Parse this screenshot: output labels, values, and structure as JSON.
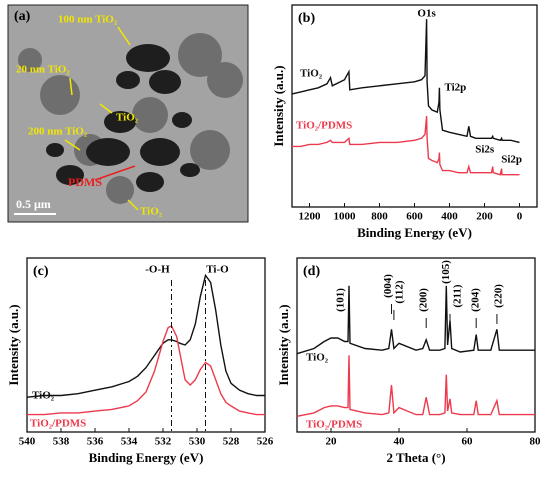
{
  "image_panel": {
    "panel_label": "(a)",
    "labels": [
      "100 nm TiO₂",
      "20 nm TiO₂",
      "TiO₂",
      "200 nm TiO₂",
      "PDMS",
      "TiO₂",
      "0.5 μm"
    ]
  },
  "chart_data": [
    {
      "type": "line",
      "panel_label": "(b)",
      "x_label": "Binding Energy (eV)",
      "y_label": "Intensity (a.u.)",
      "xlim": [
        1300,
        -100
      ],
      "xticks": [
        1200,
        1000,
        800,
        600,
        400,
        200,
        0
      ],
      "ylim": [
        0,
        100
      ],
      "x": [
        1300,
        1250,
        1200,
        1150,
        1100,
        1080,
        1070,
        1000,
        975,
        970,
        900,
        800,
        700,
        600,
        560,
        540,
        531,
        528,
        520,
        500,
        470,
        460,
        458,
        455,
        440,
        400,
        350,
        300,
        290,
        280,
        250,
        200,
        160,
        153,
        150,
        110,
        102,
        100,
        50,
        0
      ],
      "series": [
        {
          "name": "TiO₂",
          "color": "#111111",
          "values": [
            56,
            57,
            58,
            59,
            61,
            64,
            60,
            63,
            67,
            58,
            59,
            60,
            61,
            62,
            63,
            65,
            93,
            62,
            50,
            48,
            47,
            52,
            59,
            48,
            38,
            37,
            36,
            35,
            40,
            35,
            34,
            34,
            34,
            35,
            34,
            33,
            34,
            33,
            33,
            32
          ]
        },
        {
          "name": "TiO₂/PDMS",
          "color": "#ec3a4c",
          "values": [
            30,
            30,
            31,
            31,
            32,
            33,
            32,
            32,
            34,
            31,
            31,
            32,
            32,
            33,
            34,
            36,
            45,
            34,
            24,
            23,
            22,
            24,
            27,
            21,
            18,
            18,
            17,
            17,
            20,
            17,
            17,
            17,
            17,
            20,
            17,
            16,
            19,
            16,
            16,
            16
          ]
        }
      ],
      "annotations": [
        {
          "text": "O1s",
          "x": 531
        },
        {
          "text": "Ti2p",
          "x": 458
        },
        {
          "text": "Si2s",
          "x": 153
        },
        {
          "text": "Si2p",
          "x": 102
        }
      ]
    },
    {
      "type": "line",
      "panel_label": "(c)",
      "x_label": "Binding Energy (eV)",
      "y_label": "Intensity (a.u.)",
      "xlim": [
        540,
        526
      ],
      "xticks": [
        540,
        538,
        536,
        534,
        532,
        530,
        528,
        526
      ],
      "ylim": [
        0,
        100
      ],
      "x": [
        540,
        539,
        538,
        537,
        536,
        535,
        534,
        533.5,
        533,
        532.5,
        532,
        531.7,
        531.5,
        531.2,
        531,
        530.7,
        530.4,
        530.1,
        529.8,
        529.5,
        529.2,
        528.9,
        528.6,
        528.3,
        528,
        527.5,
        527,
        526.5,
        526
      ],
      "series": [
        {
          "name": "TiO₂",
          "color": "#111111",
          "values": [
            20,
            21,
            21,
            22,
            24,
            26,
            29,
            32,
            37,
            44,
            51,
            53,
            53,
            52,
            51,
            50,
            53,
            62,
            78,
            90,
            86,
            70,
            50,
            35,
            28,
            24,
            22,
            21,
            21
          ]
        },
        {
          "name": "TiO₂/PDMS",
          "color": "#ec3a4c",
          "values": [
            10,
            10,
            11,
            11,
            12,
            13,
            15,
            18,
            23,
            35,
            52,
            60,
            61,
            55,
            45,
            30,
            27,
            30,
            36,
            40,
            38,
            30,
            22,
            17,
            15,
            12,
            11,
            10,
            10
          ]
        }
      ],
      "annotations": [
        {
          "text": "-O-H",
          "x": 531.5
        },
        {
          "text": "Ti-O",
          "x": 529.5
        }
      ]
    },
    {
      "type": "line",
      "panel_label": "(d)",
      "x_label": "2 Theta (°)",
      "y_label": "Intensity (a.u.)",
      "xlim": [
        10,
        80
      ],
      "xticks": [
        20,
        40,
        60,
        80
      ],
      "ylim": [
        0,
        100
      ],
      "x": [
        10,
        15,
        18,
        20,
        22,
        24,
        25,
        25.3,
        25.6,
        30,
        35,
        37,
        37.8,
        38.5,
        40,
        45,
        47,
        48,
        49,
        52,
        53.5,
        53.9,
        54.3,
        55,
        55.5,
        58,
        62,
        62.7,
        63.3,
        67,
        68.8,
        69.5,
        75,
        80
      ],
      "series": [
        {
          "name": "TiO₂",
          "color": "#111111",
          "values": [
            45,
            48,
            52,
            54,
            54,
            52,
            52,
            84,
            51,
            48,
            47,
            48,
            59,
            48,
            51,
            47,
            48,
            53,
            47,
            47,
            48,
            84,
            50,
            64,
            48,
            46,
            47,
            56,
            47,
            47,
            59,
            47,
            47,
            47
          ]
        },
        {
          "name": "TiO₂/PDMS",
          "color": "#ec3a4c",
          "values": [
            9,
            11,
            14,
            15,
            15,
            14,
            14,
            44,
            13,
            11,
            10,
            11,
            27,
            11,
            14,
            10,
            10,
            20,
            10,
            10,
            11,
            33,
            12,
            19,
            11,
            10,
            10,
            18,
            10,
            10,
            18,
            10,
            10,
            10
          ]
        }
      ],
      "annotations": [
        {
          "text": "(101)",
          "x": 25.3
        },
        {
          "text": "(004)",
          "x": 37.8
        },
        {
          "text": "(112)",
          "x": 38.5
        },
        {
          "text": "(200)",
          "x": 48
        },
        {
          "text": "(105)",
          "x": 53.9
        },
        {
          "text": "(211)",
          "x": 55
        },
        {
          "text": "(204)",
          "x": 62.7
        },
        {
          "text": "(220)",
          "x": 68.8
        }
      ]
    }
  ]
}
